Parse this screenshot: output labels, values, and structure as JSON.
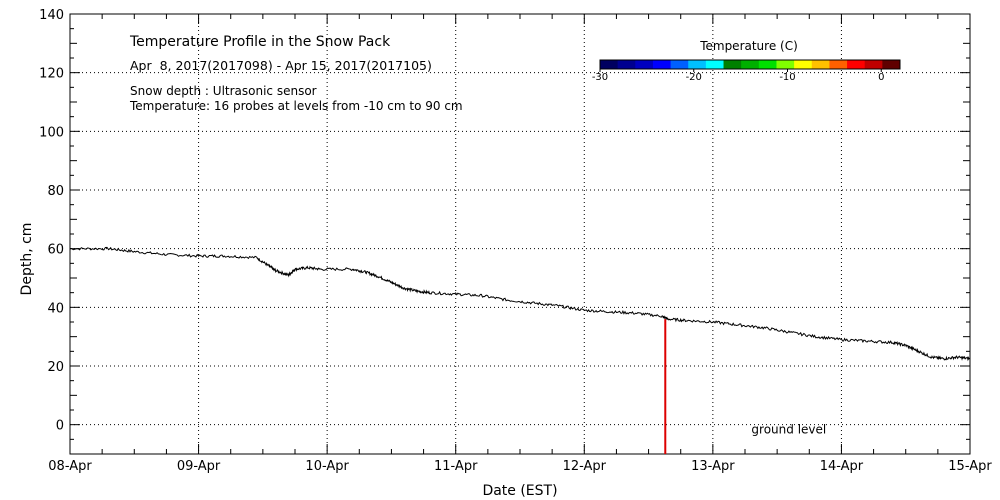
{
  "chart_data": {
    "type": "line",
    "title": "Temperature Profile in the Snow Pack",
    "subtitle": "Apr  8, 2017(2017098) - Apr 15, 2017(2017105)",
    "notes": [
      "Snow depth : Ultrasonic sensor",
      "Temperature: 16 probes at levels from -10 cm to 90 cm"
    ],
    "xlabel": "Date (EST)",
    "ylabel": "Depth, cm",
    "xlim": [
      0,
      7
    ],
    "ylim": [
      -10,
      140
    ],
    "grid": true,
    "x_tick_values": [
      0,
      1,
      2,
      3,
      4,
      5,
      6,
      7
    ],
    "x_tick_labels": [
      "08-Apr",
      "09-Apr",
      "10-Apr",
      "11-Apr",
      "12-Apr",
      "13-Apr",
      "14-Apr",
      "15-Apr"
    ],
    "y_tick_values": [
      0,
      20,
      40,
      60,
      80,
      100,
      120,
      140
    ],
    "y_tick_labels": [
      "0",
      "20",
      "40",
      "60",
      "80",
      "100",
      "120",
      "140"
    ],
    "series": [
      {
        "name": "Snow depth",
        "color": "#000000",
        "x": [
          0,
          0.3,
          0.5,
          0.75,
          1.0,
          1.2,
          1.45,
          1.55,
          1.6,
          1.7,
          1.75,
          1.85,
          1.95,
          2.2,
          2.3,
          2.4,
          2.5,
          2.6,
          2.7,
          2.8,
          3.0,
          3.2,
          3.4,
          3.6,
          3.8,
          4.0,
          4.2,
          4.4,
          4.6,
          4.65,
          4.8,
          5.0,
          5.2,
          5.4,
          5.6,
          5.8,
          6.0,
          6.2,
          6.4,
          6.5,
          6.6,
          6.7,
          6.8,
          6.9,
          7.0
        ],
        "y": [
          60,
          60,
          59,
          58,
          57.5,
          57.5,
          57,
          54,
          52.5,
          51,
          53,
          53.5,
          53,
          53,
          52,
          50.5,
          48.5,
          46.5,
          45.5,
          45,
          44.5,
          44,
          42.5,
          41.5,
          40.5,
          39,
          38.5,
          38,
          37,
          36,
          35.5,
          35,
          34,
          33,
          31.5,
          30,
          29,
          28.5,
          28,
          27,
          25,
          23,
          22.5,
          23,
          22.5
        ]
      }
    ],
    "annotations": [
      {
        "text": "ground level",
        "x": 5.3,
        "y": -3
      }
    ],
    "vertical_marker": {
      "x": 4.63,
      "y_top": 36,
      "color": "#dd0000"
    },
    "colorbar": {
      "title": "Temperature (C)",
      "range": [
        -30,
        2
      ],
      "tick_values": [
        -30,
        -20,
        -10,
        0
      ],
      "tick_labels": [
        "-30",
        "-20",
        "-10",
        "0"
      ],
      "colors": [
        "#000060",
        "#000090",
        "#0000c0",
        "#0000ff",
        "#0060ff",
        "#00c0ff",
        "#00ffff",
        "#008000",
        "#00b000",
        "#00e000",
        "#80ff00",
        "#ffff00",
        "#ffc000",
        "#ff6000",
        "#ff0000",
        "#c00000",
        "#600000"
      ]
    }
  }
}
